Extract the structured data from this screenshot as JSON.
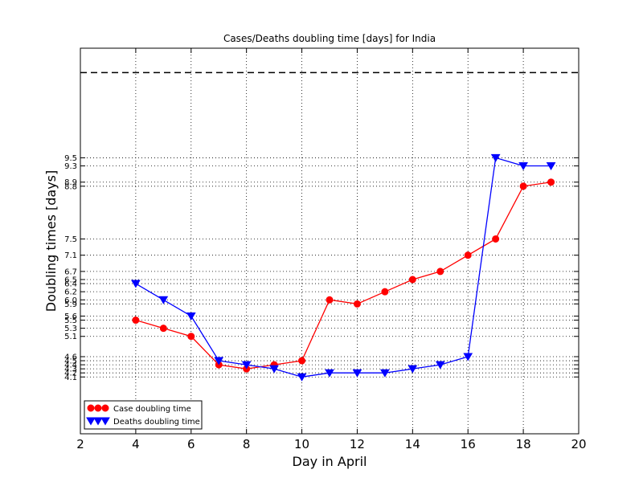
{
  "chart_data": {
    "type": "line",
    "title": "Cases/Deaths doubling time [days] for India",
    "xlabel": "Day in April",
    "ylabel": "Doubling times [days]",
    "xlim": [
      2,
      20
    ],
    "ylim": [
      2.7,
      12.2
    ],
    "grid": true,
    "legend_position": "lower-left",
    "x_ticks": [
      2,
      4,
      6,
      8,
      10,
      12,
      14,
      16,
      18,
      20
    ],
    "y_tick_labels": [
      "4.1",
      "4.2",
      "4.3",
      "4.4",
      "4.5",
      "4.6",
      "5.1",
      "5.3",
      "5.5",
      "5.6",
      "5.9",
      "6.0",
      "6.2",
      "6.4",
      "6.5",
      "6.7",
      "7.1",
      "7.5",
      "8.8",
      "8.9",
      "9.3",
      "9.5"
    ],
    "reference_line": {
      "y": 11.6,
      "style": "dashed",
      "color": "#000000"
    },
    "x": [
      4,
      5,
      6,
      7,
      8,
      9,
      10,
      11,
      12,
      13,
      14,
      15,
      16,
      17,
      18,
      19
    ],
    "series": [
      {
        "name": "Case doubling time",
        "color": "#ff0000",
        "marker": "circle",
        "values": [
          5.5,
          5.3,
          5.1,
          4.4,
          4.3,
          4.4,
          4.5,
          6.0,
          5.9,
          6.2,
          6.5,
          6.7,
          7.1,
          7.5,
          8.8,
          8.9
        ]
      },
      {
        "name": "Deaths doubling time",
        "color": "#0000ff",
        "marker": "triangle-down",
        "values": [
          6.4,
          6.0,
          5.6,
          4.5,
          4.4,
          4.3,
          4.1,
          4.2,
          4.2,
          4.2,
          4.3,
          4.4,
          4.6,
          9.5,
          9.3,
          9.3
        ]
      }
    ]
  }
}
